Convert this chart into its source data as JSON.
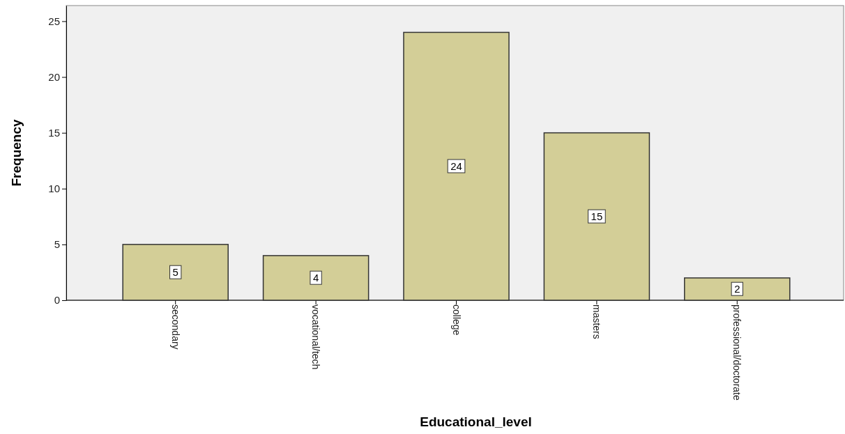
{
  "chart_data": {
    "type": "bar",
    "xlabel": "Educational_level",
    "ylabel": "Frequency",
    "categories": [
      "secondary",
      "vocational/tech",
      "college",
      "masters",
      "professional/doctorate"
    ],
    "values": [
      5,
      4,
      24,
      15,
      2
    ],
    "color": "#d3ce97",
    "ylim": [
      0,
      26.4
    ],
    "yticks": [
      0,
      5,
      10,
      15,
      20,
      25
    ],
    "data_labels": true
  }
}
